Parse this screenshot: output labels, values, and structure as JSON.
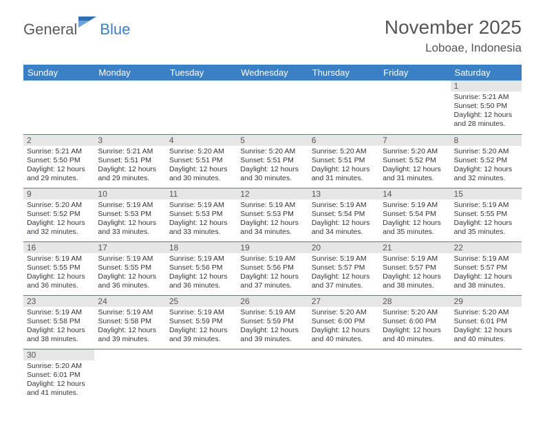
{
  "logo": {
    "word1": "General",
    "word2": "Blue"
  },
  "title": "November 2025",
  "location": "Loboae, Indonesia",
  "colors": {
    "header_bg": "#3b7fc4",
    "header_text": "#ffffff",
    "daynum_bg": "#e6e6e6",
    "border": "#3b7fc4",
    "text": "#333333",
    "title_text": "#555555"
  },
  "columns": [
    "Sunday",
    "Monday",
    "Tuesday",
    "Wednesday",
    "Thursday",
    "Friday",
    "Saturday"
  ],
  "weeks": [
    [
      null,
      null,
      null,
      null,
      null,
      null,
      {
        "n": "1",
        "sunrise": "Sunrise: 5:21 AM",
        "sunset": "Sunset: 5:50 PM",
        "day1": "Daylight: 12 hours",
        "day2": "and 28 minutes."
      }
    ],
    [
      {
        "n": "2",
        "sunrise": "Sunrise: 5:21 AM",
        "sunset": "Sunset: 5:50 PM",
        "day1": "Daylight: 12 hours",
        "day2": "and 29 minutes."
      },
      {
        "n": "3",
        "sunrise": "Sunrise: 5:21 AM",
        "sunset": "Sunset: 5:51 PM",
        "day1": "Daylight: 12 hours",
        "day2": "and 29 minutes."
      },
      {
        "n": "4",
        "sunrise": "Sunrise: 5:20 AM",
        "sunset": "Sunset: 5:51 PM",
        "day1": "Daylight: 12 hours",
        "day2": "and 30 minutes."
      },
      {
        "n": "5",
        "sunrise": "Sunrise: 5:20 AM",
        "sunset": "Sunset: 5:51 PM",
        "day1": "Daylight: 12 hours",
        "day2": "and 30 minutes."
      },
      {
        "n": "6",
        "sunrise": "Sunrise: 5:20 AM",
        "sunset": "Sunset: 5:51 PM",
        "day1": "Daylight: 12 hours",
        "day2": "and 31 minutes."
      },
      {
        "n": "7",
        "sunrise": "Sunrise: 5:20 AM",
        "sunset": "Sunset: 5:52 PM",
        "day1": "Daylight: 12 hours",
        "day2": "and 31 minutes."
      },
      {
        "n": "8",
        "sunrise": "Sunrise: 5:20 AM",
        "sunset": "Sunset: 5:52 PM",
        "day1": "Daylight: 12 hours",
        "day2": "and 32 minutes."
      }
    ],
    [
      {
        "n": "9",
        "sunrise": "Sunrise: 5:20 AM",
        "sunset": "Sunset: 5:52 PM",
        "day1": "Daylight: 12 hours",
        "day2": "and 32 minutes."
      },
      {
        "n": "10",
        "sunrise": "Sunrise: 5:19 AM",
        "sunset": "Sunset: 5:53 PM",
        "day1": "Daylight: 12 hours",
        "day2": "and 33 minutes."
      },
      {
        "n": "11",
        "sunrise": "Sunrise: 5:19 AM",
        "sunset": "Sunset: 5:53 PM",
        "day1": "Daylight: 12 hours",
        "day2": "and 33 minutes."
      },
      {
        "n": "12",
        "sunrise": "Sunrise: 5:19 AM",
        "sunset": "Sunset: 5:53 PM",
        "day1": "Daylight: 12 hours",
        "day2": "and 34 minutes."
      },
      {
        "n": "13",
        "sunrise": "Sunrise: 5:19 AM",
        "sunset": "Sunset: 5:54 PM",
        "day1": "Daylight: 12 hours",
        "day2": "and 34 minutes."
      },
      {
        "n": "14",
        "sunrise": "Sunrise: 5:19 AM",
        "sunset": "Sunset: 5:54 PM",
        "day1": "Daylight: 12 hours",
        "day2": "and 35 minutes."
      },
      {
        "n": "15",
        "sunrise": "Sunrise: 5:19 AM",
        "sunset": "Sunset: 5:55 PM",
        "day1": "Daylight: 12 hours",
        "day2": "and 35 minutes."
      }
    ],
    [
      {
        "n": "16",
        "sunrise": "Sunrise: 5:19 AM",
        "sunset": "Sunset: 5:55 PM",
        "day1": "Daylight: 12 hours",
        "day2": "and 36 minutes."
      },
      {
        "n": "17",
        "sunrise": "Sunrise: 5:19 AM",
        "sunset": "Sunset: 5:55 PM",
        "day1": "Daylight: 12 hours",
        "day2": "and 36 minutes."
      },
      {
        "n": "18",
        "sunrise": "Sunrise: 5:19 AM",
        "sunset": "Sunset: 5:56 PM",
        "day1": "Daylight: 12 hours",
        "day2": "and 36 minutes."
      },
      {
        "n": "19",
        "sunrise": "Sunrise: 5:19 AM",
        "sunset": "Sunset: 5:56 PM",
        "day1": "Daylight: 12 hours",
        "day2": "and 37 minutes."
      },
      {
        "n": "20",
        "sunrise": "Sunrise: 5:19 AM",
        "sunset": "Sunset: 5:57 PM",
        "day1": "Daylight: 12 hours",
        "day2": "and 37 minutes."
      },
      {
        "n": "21",
        "sunrise": "Sunrise: 5:19 AM",
        "sunset": "Sunset: 5:57 PM",
        "day1": "Daylight: 12 hours",
        "day2": "and 38 minutes."
      },
      {
        "n": "22",
        "sunrise": "Sunrise: 5:19 AM",
        "sunset": "Sunset: 5:57 PM",
        "day1": "Daylight: 12 hours",
        "day2": "and 38 minutes."
      }
    ],
    [
      {
        "n": "23",
        "sunrise": "Sunrise: 5:19 AM",
        "sunset": "Sunset: 5:58 PM",
        "day1": "Daylight: 12 hours",
        "day2": "and 38 minutes."
      },
      {
        "n": "24",
        "sunrise": "Sunrise: 5:19 AM",
        "sunset": "Sunset: 5:58 PM",
        "day1": "Daylight: 12 hours",
        "day2": "and 39 minutes."
      },
      {
        "n": "25",
        "sunrise": "Sunrise: 5:19 AM",
        "sunset": "Sunset: 5:59 PM",
        "day1": "Daylight: 12 hours",
        "day2": "and 39 minutes."
      },
      {
        "n": "26",
        "sunrise": "Sunrise: 5:19 AM",
        "sunset": "Sunset: 5:59 PM",
        "day1": "Daylight: 12 hours",
        "day2": "and 39 minutes."
      },
      {
        "n": "27",
        "sunrise": "Sunrise: 5:20 AM",
        "sunset": "Sunset: 6:00 PM",
        "day1": "Daylight: 12 hours",
        "day2": "and 40 minutes."
      },
      {
        "n": "28",
        "sunrise": "Sunrise: 5:20 AM",
        "sunset": "Sunset: 6:00 PM",
        "day1": "Daylight: 12 hours",
        "day2": "and 40 minutes."
      },
      {
        "n": "29",
        "sunrise": "Sunrise: 5:20 AM",
        "sunset": "Sunset: 6:01 PM",
        "day1": "Daylight: 12 hours",
        "day2": "and 40 minutes."
      }
    ],
    [
      {
        "n": "30",
        "sunrise": "Sunrise: 5:20 AM",
        "sunset": "Sunset: 6:01 PM",
        "day1": "Daylight: 12 hours",
        "day2": "and 41 minutes."
      },
      null,
      null,
      null,
      null,
      null,
      null
    ]
  ]
}
